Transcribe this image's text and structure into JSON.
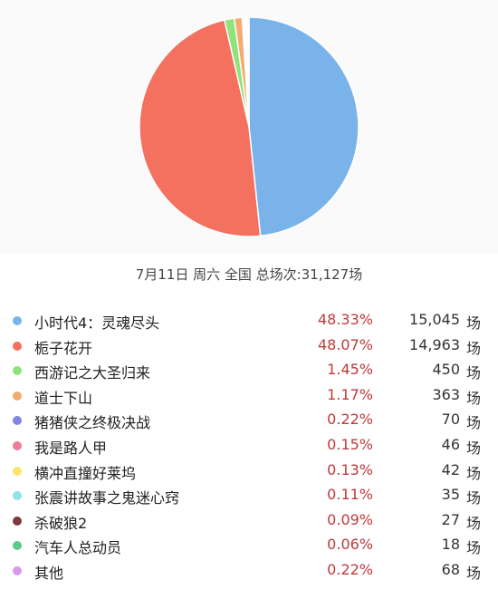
{
  "chart_data": {
    "type": "pie",
    "title": "",
    "subtitle": "7月11日 周六 全国 总场次:31,127场",
    "unit": "场",
    "slices": [
      {
        "label": "小时代4：灵魂尽头",
        "percent_text": "48.33%",
        "percent": 48.33,
        "value": 15045,
        "value_text": "15,045",
        "color": "#7ab3ea"
      },
      {
        "label": "栀子花开",
        "percent_text": "48.07%",
        "percent": 48.07,
        "value": 14963,
        "value_text": "14,963",
        "color": "#f4705f"
      },
      {
        "label": "西游记之大圣归来",
        "percent_text": "1.45%",
        "percent": 1.45,
        "value": 450,
        "value_text": "450",
        "color": "#8fe37b"
      },
      {
        "label": "道士下山",
        "percent_text": "1.17%",
        "percent": 1.17,
        "value": 363,
        "value_text": "363",
        "color": "#f3ab6f"
      },
      {
        "label": "猪猪侠之终极决战",
        "percent_text": "0.22%",
        "percent": 0.22,
        "value": 70,
        "value_text": "70",
        "color": "#8484e6"
      },
      {
        "label": "我是路人甲",
        "percent_text": "0.15%",
        "percent": 0.15,
        "value": 46,
        "value_text": "46",
        "color": "#ef7c96"
      },
      {
        "label": "横冲直撞好莱坞",
        "percent_text": "0.13%",
        "percent": 0.13,
        "value": 42,
        "value_text": "42",
        "color": "#f8e56c"
      },
      {
        "label": "张震讲故事之鬼迷心窍",
        "percent_text": "0.11%",
        "percent": 0.11,
        "value": 35,
        "value_text": "35",
        "color": "#8fe4ea"
      },
      {
        "label": "杀破狼2",
        "percent_text": "0.09%",
        "percent": 0.09,
        "value": 27,
        "value_text": "27",
        "color": "#7a3a3e"
      },
      {
        "label": "汽车人总动员",
        "percent_text": "0.06%",
        "percent": 0.06,
        "value": 18,
        "value_text": "18",
        "color": "#5cc98e"
      },
      {
        "label": "其他",
        "percent_text": "0.22%",
        "percent": 0.22,
        "value": 68,
        "value_text": "68",
        "color": "#d69be8"
      }
    ]
  }
}
